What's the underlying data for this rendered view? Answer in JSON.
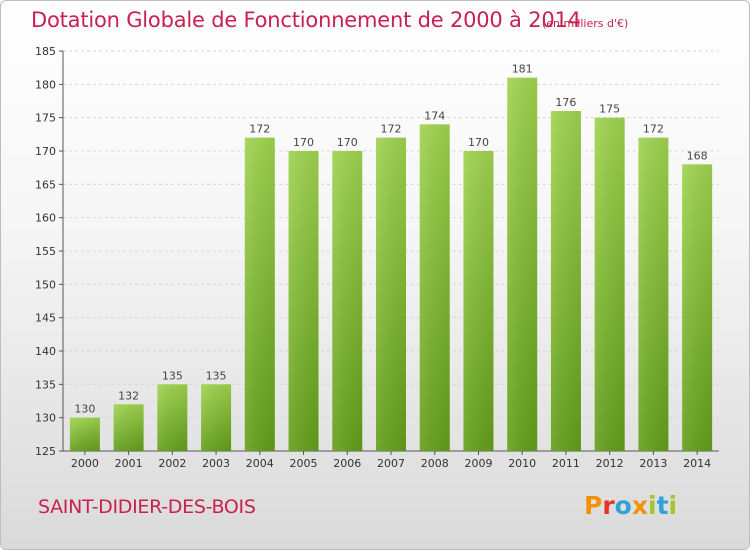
{
  "chart_data": {
    "type": "bar",
    "title": "Dotation Globale de Fonctionnement de 2000 à 2014",
    "unit": "(en milliers d'€)",
    "categories": [
      "2000",
      "2001",
      "2002",
      "2003",
      "2004",
      "2005",
      "2006",
      "2007",
      "2008",
      "2009",
      "2010",
      "2011",
      "2012",
      "2013",
      "2014"
    ],
    "values": [
      130,
      132,
      135,
      135,
      172,
      170,
      170,
      172,
      174,
      170,
      181,
      176,
      175,
      172,
      168
    ],
    "ylim": [
      125,
      185
    ],
    "yticks": [
      125,
      130,
      135,
      140,
      145,
      150,
      155,
      160,
      165,
      170,
      175,
      180,
      185
    ],
    "grid": true,
    "bar_color": "#7fc332"
  },
  "commune": "SAINT-DIDIER-DES-BOIS",
  "logo": {
    "letters": [
      {
        "ch": "P",
        "color": "#f39200"
      },
      {
        "ch": "r",
        "color": "#e6332a"
      },
      {
        "ch": "o",
        "color": "#2fa3d9"
      },
      {
        "ch": "x",
        "color": "#f39200"
      },
      {
        "ch": "i",
        "color": "#a3c52e"
      },
      {
        "ch": "t",
        "color": "#2fa3d9"
      },
      {
        "ch": "i",
        "color": "#a3c52e"
      }
    ]
  }
}
